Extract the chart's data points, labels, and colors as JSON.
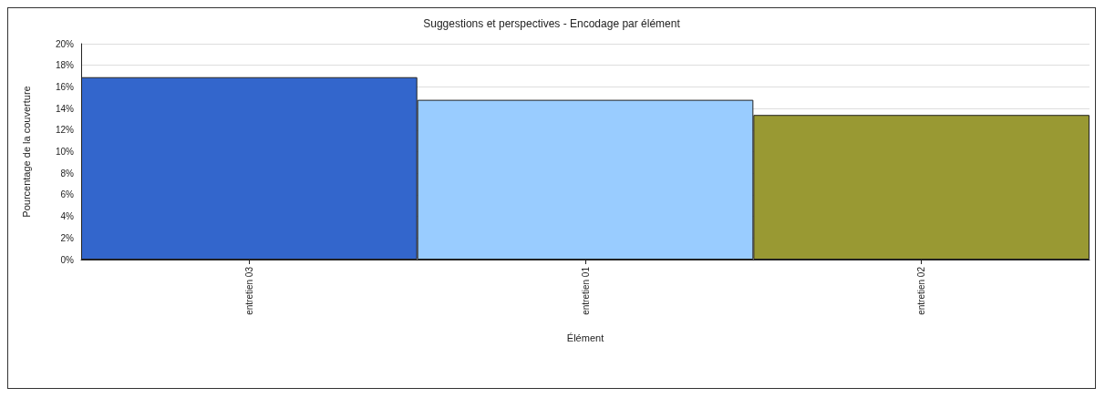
{
  "chart_data": {
    "type": "bar",
    "title": "Suggestions et perspectives - Encodage par élément",
    "xlabel": "Élément",
    "ylabel": "Pourcentage de la couverture",
    "categories": [
      "entretien 03",
      "entretien 01",
      "entretien 02"
    ],
    "values": [
      16.9,
      14.8,
      13.4
    ],
    "colors": [
      "#3366cc",
      "#99ccff",
      "#999933"
    ],
    "ylim": [
      0,
      20
    ],
    "yticks": [
      {
        "value": 0,
        "label": "0%"
      },
      {
        "value": 2,
        "label": "2%"
      },
      {
        "value": 4,
        "label": "4%"
      },
      {
        "value": 6,
        "label": "6%"
      },
      {
        "value": 8,
        "label": "8%"
      },
      {
        "value": 10,
        "label": "10%"
      },
      {
        "value": 12,
        "label": "12%"
      },
      {
        "value": 14,
        "label": "14%"
      },
      {
        "value": 16,
        "label": "16%"
      },
      {
        "value": 18,
        "label": "18%"
      },
      {
        "value": 20,
        "label": "20%"
      }
    ],
    "grid": "y"
  }
}
